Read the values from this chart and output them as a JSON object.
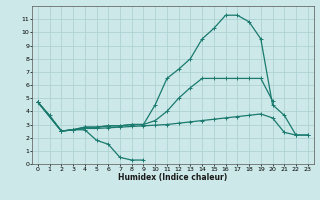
{
  "xlabel": "Humidex (Indice chaleur)",
  "xlim": [
    -0.5,
    23.5
  ],
  "ylim": [
    0,
    12
  ],
  "yticks": [
    0,
    1,
    2,
    3,
    4,
    5,
    6,
    7,
    8,
    9,
    10,
    11
  ],
  "xticks": [
    0,
    1,
    2,
    3,
    4,
    5,
    6,
    7,
    8,
    9,
    10,
    11,
    12,
    13,
    14,
    15,
    16,
    17,
    18,
    19,
    20,
    21,
    22,
    23
  ],
  "bg_color": "#cce8e8",
  "grid_color": "#aacece",
  "line_color": "#1a7a6e",
  "line_width": 0.9,
  "marker": "+",
  "marker_size": 3.5,
  "curves": [
    {
      "x": [
        0,
        1,
        2,
        3,
        4,
        5,
        6,
        7,
        8,
        9
      ],
      "y": [
        4.7,
        3.7,
        2.5,
        2.6,
        2.6,
        1.8,
        1.5,
        0.5,
        0.3,
        0.3
      ]
    },
    {
      "x": [
        0,
        2,
        3,
        4,
        5,
        6,
        7,
        8,
        9,
        10,
        11,
        12,
        13,
        14,
        15,
        16,
        17,
        18,
        19,
        20,
        21,
        22,
        23
      ],
      "y": [
        4.7,
        2.5,
        2.6,
        2.7,
        2.7,
        2.75,
        2.8,
        2.85,
        2.9,
        2.95,
        3.0,
        3.1,
        3.2,
        3.3,
        3.4,
        3.5,
        3.6,
        3.7,
        3.8,
        3.5,
        2.4,
        2.2,
        2.2
      ]
    },
    {
      "x": [
        0,
        2,
        3,
        4,
        5,
        6,
        7,
        8,
        9,
        10,
        11,
        12,
        13,
        14,
        15,
        16,
        17,
        18,
        19,
        20,
        21,
        22,
        23
      ],
      "y": [
        4.7,
        2.5,
        2.6,
        2.8,
        2.8,
        2.9,
        2.9,
        3.0,
        3.0,
        4.5,
        6.5,
        7.2,
        8.0,
        9.5,
        10.3,
        11.3,
        11.3,
        10.8,
        9.5,
        4.5,
        3.7,
        2.2,
        2.2
      ]
    },
    {
      "x": [
        0,
        2,
        3,
        4,
        5,
        6,
        7,
        8,
        9,
        10,
        11,
        12,
        13,
        14,
        15,
        16,
        17,
        18,
        19,
        20
      ],
      "y": [
        4.7,
        2.5,
        2.6,
        2.8,
        2.8,
        2.9,
        2.9,
        3.0,
        3.0,
        3.3,
        4.0,
        5.0,
        5.8,
        6.5,
        6.5,
        6.5,
        6.5,
        6.5,
        6.5,
        4.8
      ]
    }
  ]
}
